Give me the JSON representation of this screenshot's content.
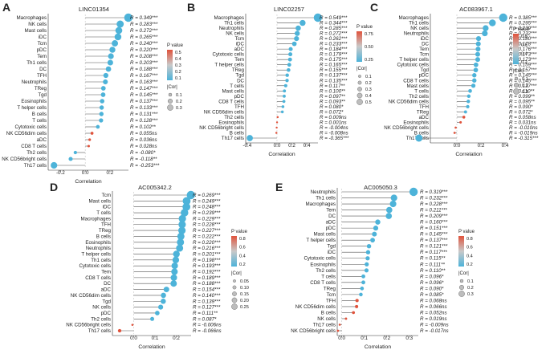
{
  "chart_data": [
    {
      "type": "lollipop",
      "panel_letter": "A",
      "title": "LINC01354",
      "xlabel": "Correlation",
      "xlim": [
        -0.3,
        0.35
      ],
      "xticks": [
        "-0.2",
        "0.0",
        "0.2"
      ],
      "xtick_values": [
        -0.2,
        0.0,
        0.2
      ],
      "categories": [
        "Macrophages",
        "NK cells",
        "Mast cells",
        "iDC",
        "Tcm",
        "pDC",
        "Tem",
        "Th1 cells",
        "DC",
        "TFH",
        "Neutrophils",
        "TReg",
        "Tgd",
        "Eosinophils",
        "T helper cells",
        "B cells",
        "T cells",
        "Cytotoxic cells",
        "NK CD56dim cells",
        "aDC",
        "CD8 T cells",
        "Th2 cells",
        "NK CD56bright cells",
        "Th17 cells"
      ],
      "values": [
        0.349,
        0.283,
        0.272,
        0.265,
        0.24,
        0.22,
        0.208,
        0.203,
        0.188,
        0.167,
        0.163,
        0.147,
        0.145,
        0.137,
        0.133,
        0.131,
        0.128,
        0.102,
        0.055,
        0.036,
        0.028,
        -0.08,
        -0.118,
        -0.253
      ],
      "value_labels": [
        "R = 0.349***",
        "R = 0.283***",
        "R = 0.272***",
        "R = 0.265***",
        "R = 0.240***",
        "R = 0.220***",
        "R = 0.208***",
        "R = 0.203***",
        "R = 0.188***",
        "R = 0.167***",
        "R = 0.163***",
        "R = 0.147***",
        "R = 0.145***",
        "R = 0.137***",
        "R = 0.133***",
        "R = 0.131***",
        "R = 0.128***",
        "R = 0.102**",
        "R = 0.055ns",
        "R = 0.036ns",
        "R = 0.028ns",
        "R = -0.080*",
        "R = -0.118**",
        "R = -0.253***"
      ],
      "legend_position": "middle-right",
      "pvalue_legend": {
        "title": "P value",
        "ticks": [
          "0.5",
          "0.4",
          "0.3",
          "0.2",
          "0.1"
        ]
      },
      "size_legend": {
        "title": "|Cor|",
        "entries": [
          "0.1",
          "0.2",
          "0.3"
        ]
      }
    },
    {
      "type": "lollipop",
      "panel_letter": "B",
      "title": "LINC02257",
      "xlabel": "Correlation",
      "xlim": [
        -0.42,
        0.55
      ],
      "xticks": [
        "-0.4",
        "0.0",
        "0.2",
        "0.4"
      ],
      "xtick_values": [
        -0.4,
        0.0,
        0.2,
        0.4
      ],
      "categories": [
        "Macrophages",
        "Th1 cells",
        "Neutrophils",
        "NK cells",
        "Tcm",
        "iDC",
        "aDC",
        "Cytotoxic cells",
        "Tem",
        "T helper cells",
        "TReg",
        "Tgd",
        "DC",
        "T cells",
        "Mast cells",
        "pDC",
        "CD8 T cells",
        "TFH",
        "NK CD56dim cells",
        "Th2 cells",
        "Eosinophils",
        "NK CD56bright cells",
        "B cells",
        "Th17 cells"
      ],
      "values": [
        0.549,
        0.344,
        0.285,
        0.272,
        0.262,
        0.233,
        0.184,
        0.179,
        0.175,
        0.165,
        0.155,
        0.137,
        0.135,
        0.117,
        0.1,
        0.097,
        0.093,
        0.08,
        0.072,
        0.009,
        0.001,
        -0.004,
        -0.008,
        -0.365
      ],
      "value_labels": [
        "R = 0.549***",
        "R = 0.344***",
        "R = 0.285***",
        "R = 0.272***",
        "R = 0.262***",
        "R = 0.233***",
        "R = 0.184***",
        "R = 0.179***",
        "R = 0.175***",
        "R = 0.165***",
        "R = 0.155***",
        "R = 0.137***",
        "R = 0.135***",
        "R = 0.117**",
        "R = 0.100**",
        "R = 0.097**",
        "R = 0.093**",
        "R = 0.080*",
        "R = 0.072*",
        "R = 0.009ns",
        "R = 0.001ns",
        "R = -0.004ns",
        "R = -0.008ns",
        "R = -0.365***"
      ],
      "legend_position": "middle-right",
      "pvalue_legend": {
        "title": "P value",
        "ticks": [
          "0.75",
          "0.50",
          "0.25"
        ]
      },
      "size_legend": {
        "title": "|Cor|",
        "entries": [
          "0.1",
          "0.2",
          "0.3",
          "0.4",
          "0.5"
        ]
      }
    },
    {
      "type": "lollipop",
      "panel_letter": "C",
      "title": "AC083967.1",
      "xlabel": "Correlation",
      "xlim": [
        -0.22,
        0.42
      ],
      "xticks": [
        "0.0",
        "0.2",
        "0.4"
      ],
      "xtick_values": [
        0.0,
        0.2,
        0.4
      ],
      "categories": [
        "Macrophages",
        "Th1 cells",
        "NK cells",
        "Neutrophils",
        "iDC",
        "DC",
        "Tem",
        "Tcm",
        "T helper cells",
        "Cytotoxic cells",
        "Tgd",
        "pDC",
        "CD8 T cells",
        "Mast cells",
        "T cells",
        "Th2 cells",
        "NK CD56dim cells",
        "TFH",
        "TReg",
        "aDC",
        "Eosinophils",
        "NK CD56bright cells",
        "B cells",
        "Th17 cells"
      ],
      "values": [
        0.385,
        0.295,
        0.239,
        0.232,
        0.18,
        0.178,
        0.176,
        0.173,
        0.173,
        0.159,
        0.157,
        0.145,
        0.145,
        0.137,
        0.11,
        0.099,
        0.095,
        0.09,
        0.072,
        0.058,
        0.031,
        -0.01,
        -0.019,
        -0.315
      ],
      "value_labels": [
        "R = 0.385***",
        "R = 0.295***",
        "R = 0.239***",
        "R = 0.232***",
        "R = 0.180***",
        "R = 0.178***",
        "R = 0.176***",
        "R = 0.173***",
        "R = 0.173***",
        "R = 0.159***",
        "R = 0.157***",
        "R = 0.145***",
        "R = 0.145***",
        "R = 0.137***",
        "R = 0.110**",
        "R = 0.099**",
        "R = 0.095**",
        "R = 0.090*",
        "R = 0.072*",
        "R = 0.058ns",
        "R = 0.031ns",
        "R = -0.010ns",
        "R = -0.019ns",
        "R = -0.315***"
      ],
      "legend_position": "middle-right",
      "pvalue_legend": {
        "title": "P value",
        "ticks": [
          "0.8",
          "0.6",
          "0.4",
          "0.2"
        ]
      },
      "size_legend": {
        "title": "|Cor|",
        "entries": [
          "0.1",
          "0.2",
          "0.3"
        ]
      }
    },
    {
      "type": "lollipop",
      "panel_letter": "D",
      "title": "AC005342.2",
      "xlabel": "Correlation",
      "xlim": [
        -0.1,
        0.27
      ],
      "xticks": [
        "0.0",
        "0.1",
        "0.2"
      ],
      "xtick_values": [
        0.0,
        0.1,
        0.2
      ],
      "categories": [
        "Tcm",
        "Mast cells",
        "iDC",
        "T cells",
        "Macrophages",
        "TFH",
        "TReg",
        "B cells",
        "Eosinophils",
        "Neutrophils",
        "T helper cells",
        "Th1 cells",
        "Cytotoxic cells",
        "Tem",
        "CD8 T cells",
        "DC",
        "aDC",
        "NK CD56dim cells",
        "Tgd",
        "NK cells",
        "pDC",
        "Th2 cells",
        "NK CD56bright cells",
        "Th17 cells"
      ],
      "values": [
        0.269,
        0.249,
        0.248,
        0.239,
        0.229,
        0.228,
        0.227,
        0.222,
        0.22,
        0.216,
        0.201,
        0.198,
        0.193,
        0.192,
        0.189,
        0.188,
        0.154,
        0.14,
        0.139,
        0.127,
        0.111,
        0.087,
        -0.006,
        -0.066
      ],
      "value_labels": [
        "R = 0.269***",
        "R = 0.249***",
        "R = 0.248***",
        "R = 0.239***",
        "R = 0.229***",
        "R = 0.228***",
        "R = 0.227***",
        "R = 0.222***",
        "R = 0.220***",
        "R = 0.216***",
        "R = 0.201***",
        "R = 0.198***",
        "R = 0.193***",
        "R = 0.192***",
        "R = 0.189***",
        "R = 0.188***",
        "R = 0.154***",
        "R = 0.140***",
        "R = 0.139***",
        "R = 0.127***",
        "R = 0.111**",
        "R = 0.087*",
        "R = -0.006ns",
        "R = -0.066ns"
      ],
      "legend_position": "middle-right",
      "pvalue_legend": {
        "title": "P value",
        "ticks": [
          "0.8",
          "0.6",
          "0.4",
          "0.2"
        ]
      },
      "size_legend": {
        "title": "|Cor|",
        "entries": [
          "0.05",
          "0.10",
          "0.15",
          "0.20",
          "0.25"
        ]
      }
    },
    {
      "type": "lollipop",
      "panel_letter": "E",
      "title": "AC005050.3",
      "xlabel": "Correlation",
      "xlim": [
        -0.02,
        0.34
      ],
      "xticks": [
        "0.0",
        "0.1",
        "0.2",
        "0.3"
      ],
      "xtick_values": [
        0.0,
        0.1,
        0.2,
        0.3
      ],
      "categories": [
        "Neutrophils",
        "Th1 cells",
        "Macrophages",
        "Tem",
        "DC",
        "aDC",
        "pDC",
        "Mast cells",
        "T helper cells",
        "Tgd",
        "iDC",
        "Cytotoxic cells",
        "Eosinophils",
        "Th2 cells",
        "T cells",
        "CD8 T cells",
        "TReg",
        "Tcm",
        "TFH",
        "NK CD56dim cells",
        "B cells",
        "NK cells",
        "Th17 cells",
        "NK CD56bright cells"
      ],
      "values": [
        0.319,
        0.232,
        0.228,
        0.211,
        0.209,
        0.16,
        0.151,
        0.145,
        0.137,
        0.121,
        0.117,
        0.115,
        0.111,
        0.11,
        0.096,
        0.096,
        0.09,
        0.085,
        0.068,
        0.066,
        0.052,
        0.019,
        -0.009,
        -0.017
      ],
      "value_labels": [
        "R = 0.319***",
        "R = 0.232***",
        "R = 0.228***",
        "R = 0.211***",
        "R = 0.209***",
        "R = 0.160***",
        "R = 0.151***",
        "R = 0.145***",
        "R = 0.137***",
        "R = 0.121***",
        "R = 0.117***",
        "R = 0.115**",
        "R = 0.111**",
        "R = 0.110**",
        "R = 0.096*",
        "R = 0.096*",
        "R = 0.090*",
        "R = 0.085*",
        "R = 0.068ns",
        "R = 0.066ns",
        "R = 0.052ns",
        "R = 0.019ns",
        "R = -0.009ns",
        "R = -0.017ns"
      ],
      "legend_position": "middle-right",
      "pvalue_legend": {
        "title": "P value",
        "ticks": [
          "0.8",
          "0.6",
          "0.4",
          "0.2"
        ]
      },
      "size_legend": {
        "title": "|Cor|",
        "entries": [
          "0.1",
          "0.2",
          "0.3"
        ]
      }
    }
  ],
  "colors": {
    "point_significant": "#4db3d9",
    "point_nonsignificant": "#e0533c",
    "gradient_top": "#e0533c",
    "gradient_mid": "#c9c9c9",
    "gradient_bottom": "#4db3d9",
    "axis": "#333333",
    "segment": "#555555"
  }
}
